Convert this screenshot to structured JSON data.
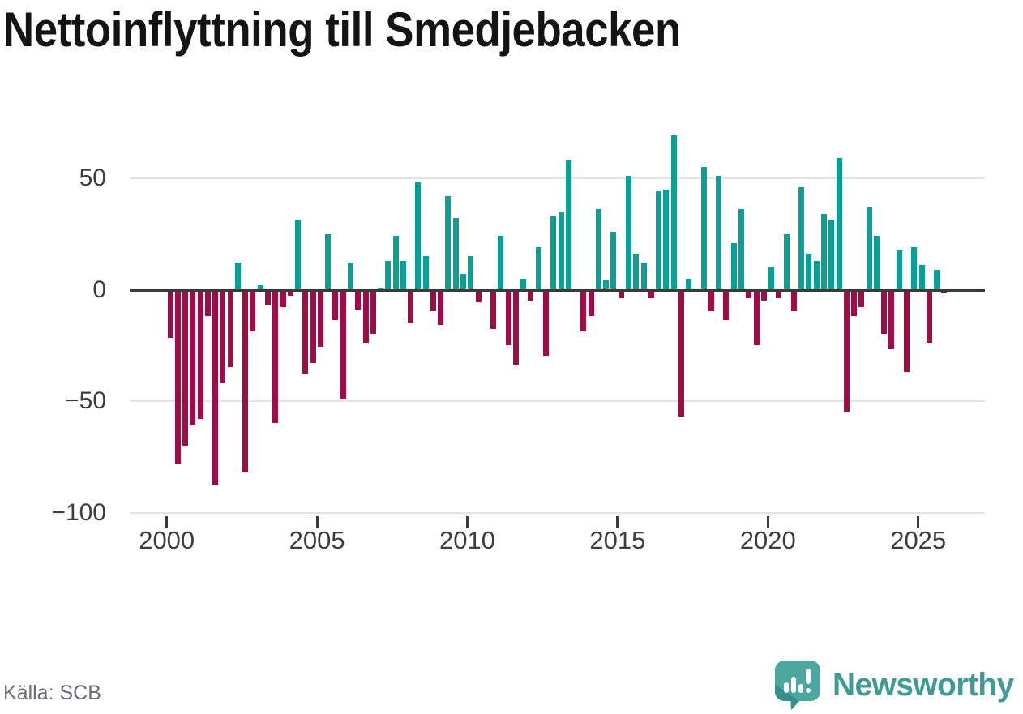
{
  "title": "Nettoinflyttning till Smedjebacken",
  "source": "Källa: SCB",
  "branding": {
    "logo_text": "Newsworthy",
    "logo_icon": "newsworthy-speech-bubble-barchart-icon"
  },
  "colors": {
    "positive": "#0aa096",
    "negative": "#a00d46",
    "title": "#141414",
    "axis_text": "#3d3d3d",
    "gridline": "#e4e4e4",
    "zero_line": "#3a3a3a",
    "source_text": "#6c6c75",
    "brand_teal": "#3e9b95",
    "logo_bubble": "#4ca7a0",
    "logo_bubble_shade": "#33908a"
  },
  "chart_data": {
    "type": "bar",
    "title": "Nettoinflyttning till Smedjebacken",
    "xlabel": "",
    "ylabel": "",
    "frequency": "quarterly",
    "start_year": 2000,
    "ylim": [
      -100,
      75
    ],
    "grid": "horizontal",
    "y_ticks": [
      {
        "label": "50",
        "value": 50
      },
      {
        "label": "0",
        "value": 0
      },
      {
        "label": "−50",
        "value": -50
      },
      {
        "label": "−100",
        "value": -100
      }
    ],
    "x_ticks": [
      {
        "label": "2000",
        "year": 2000
      },
      {
        "label": "2005",
        "year": 2005
      },
      {
        "label": "2010",
        "year": 2010
      },
      {
        "label": "2015",
        "year": 2015
      },
      {
        "label": "2020",
        "year": 2020
      },
      {
        "label": "2025",
        "year": 2025
      }
    ],
    "values": [
      -21,
      -77,
      -69,
      -60,
      -57,
      -11,
      -87,
      -41,
      -34,
      12,
      -81,
      -18,
      2,
      -6,
      -59,
      -7,
      -2,
      31,
      -37,
      -32,
      -25,
      25,
      -13,
      -48,
      12,
      -8,
      -23,
      -19,
      1,
      13,
      24,
      13,
      -14,
      48,
      15,
      -9,
      -15,
      42,
      32,
      7,
      15,
      -5,
      0,
      -17,
      24,
      -24,
      -33,
      5,
      -4,
      19,
      -29,
      33,
      35,
      58,
      0,
      -18,
      -11,
      36,
      4,
      26,
      -3,
      51,
      16,
      12,
      -3,
      44,
      45,
      69,
      -56,
      5,
      0,
      55,
      -9,
      51,
      -13,
      21,
      36,
      -3,
      -24,
      -4,
      10,
      -3,
      25,
      -9,
      46,
      16,
      13,
      34,
      31,
      59,
      -54,
      -11,
      -7,
      37,
      24,
      -19,
      -26,
      18,
      -36,
      19,
      11,
      -23,
      9,
      -1
    ]
  }
}
